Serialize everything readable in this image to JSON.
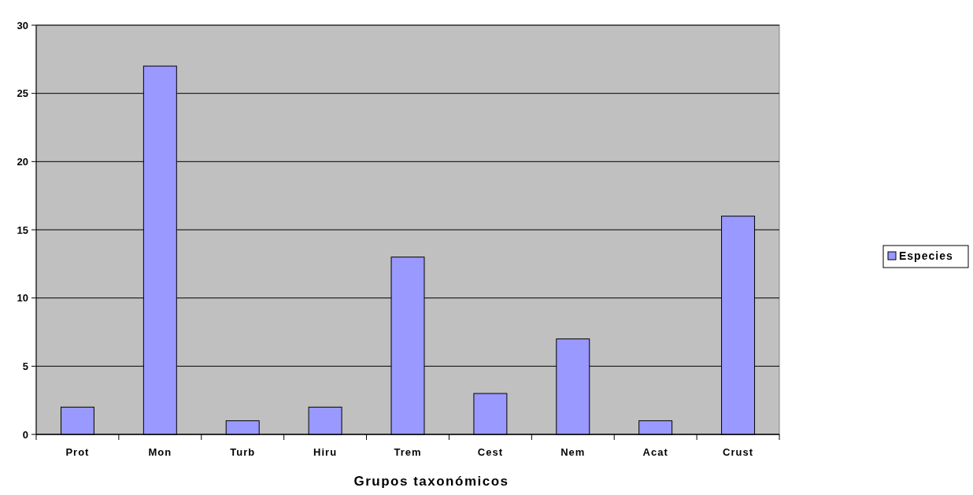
{
  "chart_data": {
    "type": "bar",
    "xlabel": "Grupos taxonómicos",
    "categories": [
      "Prot",
      "Mon",
      "Turb",
      "Hiru",
      "Trem",
      "Cest",
      "Nem",
      "Acat",
      "Crust"
    ],
    "series": [
      {
        "name": "Especies",
        "color": "#9999ff",
        "values": [
          2,
          27,
          1,
          2,
          13,
          3,
          7,
          1,
          16
        ]
      }
    ],
    "ylim": [
      0,
      30
    ],
    "yticks": [
      0,
      5,
      10,
      15,
      20,
      25,
      30
    ],
    "grid": "y",
    "legend": "right"
  }
}
